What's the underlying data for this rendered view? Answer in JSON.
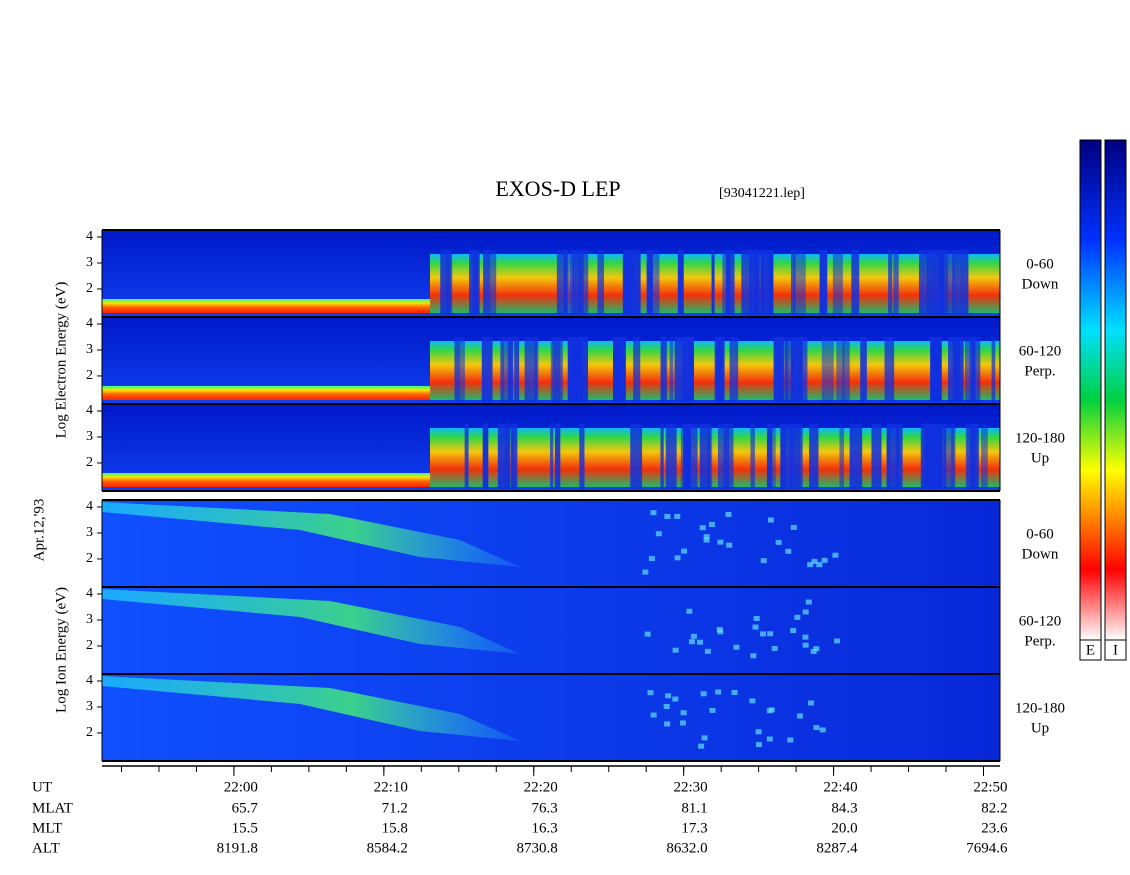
{
  "chart_data": {
    "type": "spectrogram",
    "title": "EXOS-D LEP",
    "file_label": "[93041221.lep]",
    "date": "Apr.12,'93",
    "electron_axis_label": "Log Electron Energy (eV)",
    "ion_axis_label": "Log Ion Energy (eV)",
    "panels": [
      {
        "angle": "0-60",
        "direction": "Down",
        "ylim": [
          0.92,
          4.27
        ],
        "yticks": [
          2,
          3,
          4
        ]
      },
      {
        "angle": "60-120",
        "direction": "Perp.",
        "ylim": [
          0.92,
          4.27
        ],
        "yticks": [
          2,
          3,
          4
        ]
      },
      {
        "angle": "120-180",
        "direction": "Up",
        "ylim": [
          0.92,
          4.27
        ],
        "yticks": [
          2,
          3,
          4
        ]
      },
      {
        "angle": "0-60",
        "direction": "Down",
        "ylim": [
          0.92,
          4.27
        ],
        "yticks": [
          2,
          3,
          4
        ]
      },
      {
        "angle": "60-120",
        "direction": "Perp.",
        "ylim": [
          0.92,
          4.27
        ],
        "yticks": [
          2,
          3,
          4
        ]
      },
      {
        "angle": "120-180",
        "direction": "Up",
        "ylim": [
          0.92,
          4.27
        ],
        "yticks": [
          2,
          3,
          4
        ]
      }
    ],
    "xlim": [
      1311.2,
      1371.1
    ],
    "xticks": [
      {
        "value": 1320,
        "label": "22:00"
      },
      {
        "value": 1330,
        "label": "22:10"
      },
      {
        "value": 1340,
        "label": "22:20"
      },
      {
        "value": 1350,
        "label": "22:30"
      },
      {
        "value": 1360,
        "label": "22:40"
      },
      {
        "value": 1370,
        "label": "22:50"
      }
    ],
    "minor_xticks": [
      1312.5,
      1315,
      1317.5,
      1320,
      1322.5,
      1325,
      1327.5,
      1330,
      1332.5,
      1335,
      1337.5,
      1340,
      1342.5,
      1345,
      1347.5,
      1350,
      1352.5,
      1355,
      1357.5,
      1360,
      1362.5,
      1365,
      1367.5,
      1370
    ],
    "x_row_label": "UT",
    "orbit_rows": [
      {
        "label": "MLAT",
        "values": [
          "65.7",
          "71.2",
          "76.3",
          "81.1",
          "84.3",
          "82.2"
        ]
      },
      {
        "label": "MLT",
        "values": [
          "15.5",
          "15.8",
          "16.3",
          "17.3",
          "20.0",
          "23.6"
        ]
      },
      {
        "label": "ALT",
        "values": [
          "8191.8",
          "8584.2",
          "8730.8",
          "8632.0",
          "8287.4",
          "7694.6"
        ]
      }
    ],
    "colorbars": [
      {
        "label": "E"
      },
      {
        "label": "I"
      }
    ]
  }
}
